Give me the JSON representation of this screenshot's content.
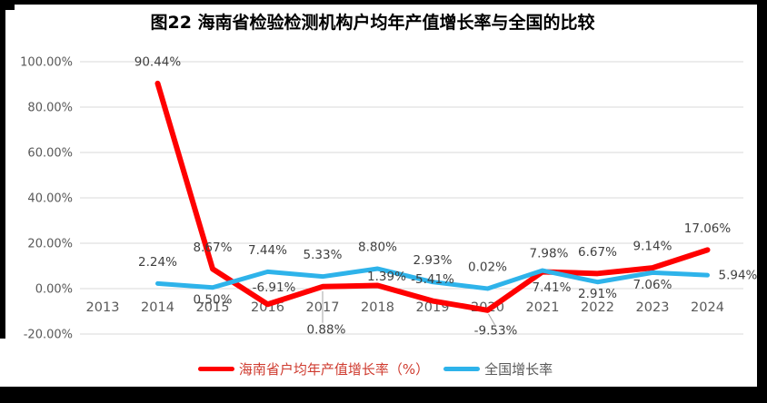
{
  "page": {
    "background": "#ffffff",
    "border_color": "#000000"
  },
  "chart_data": {
    "type": "line",
    "title": "图22  海南省检验检测机构户均年产值增长率与全国的比较",
    "categories": [
      "2013",
      "2014",
      "2015",
      "2016",
      "2017",
      "2018",
      "2019",
      "2020",
      "2021",
      "2022",
      "2023",
      "2024"
    ],
    "y_ticks": [
      "100.00%",
      "80.00%",
      "60.00%",
      "40.00%",
      "20.00%",
      "0.00%",
      "-20.00%"
    ],
    "ylim": [
      -20,
      100
    ],
    "grid": true,
    "legend_position": "bottom",
    "axis_label_color": "#595959",
    "data_label_color": "#3f3f3f",
    "gridline_color": "#d9d9d9",
    "leader_line_color": "#a6a6a6",
    "series": [
      {
        "name": "海南省户均年产值增长率（%）",
        "color": "#ff0000",
        "values": [
          null,
          90.44,
          8.67,
          -6.91,
          0.88,
          1.39,
          -5.41,
          -9.53,
          7.41,
          6.67,
          9.14,
          17.06
        ],
        "labels": [
          null,
          "90.44%",
          "8.67%",
          "-6.91%",
          "0.88%",
          "1.39%",
          "-5.41%",
          "-9.53%",
          "7.41%",
          "6.67%",
          "9.14%",
          "17.06%"
        ],
        "label_pos": [
          null,
          "above",
          "above",
          "above-right",
          "below-far",
          "above-tight",
          "above",
          "below-mid",
          "below-right",
          "above",
          "above",
          "above"
        ]
      },
      {
        "name": "全国增长率",
        "color": "#2eb3ea",
        "values": [
          null,
          2.24,
          0.5,
          7.44,
          5.33,
          8.8,
          2.93,
          0.02,
          7.98,
          2.91,
          7.06,
          5.94
        ],
        "labels": [
          null,
          "2.24%",
          "0.50%",
          "7.44%",
          "5.33%",
          "8.80%",
          "2.93%",
          "0.02%",
          "7.98%",
          "2.91%",
          "7.06%",
          "5.94%"
        ],
        "label_pos": [
          null,
          "above",
          "below",
          "above",
          "above",
          "above",
          "above",
          "above",
          "above-right",
          "below",
          "below",
          "right"
        ]
      }
    ]
  },
  "legend": {
    "items": [
      {
        "label": "海南省户均年产值增长率（%）",
        "color": "#ff0000",
        "text_color": "#cf3b2f"
      },
      {
        "label": "全国增长率",
        "color": "#2eb3ea",
        "text_color": "#595959"
      }
    ]
  }
}
